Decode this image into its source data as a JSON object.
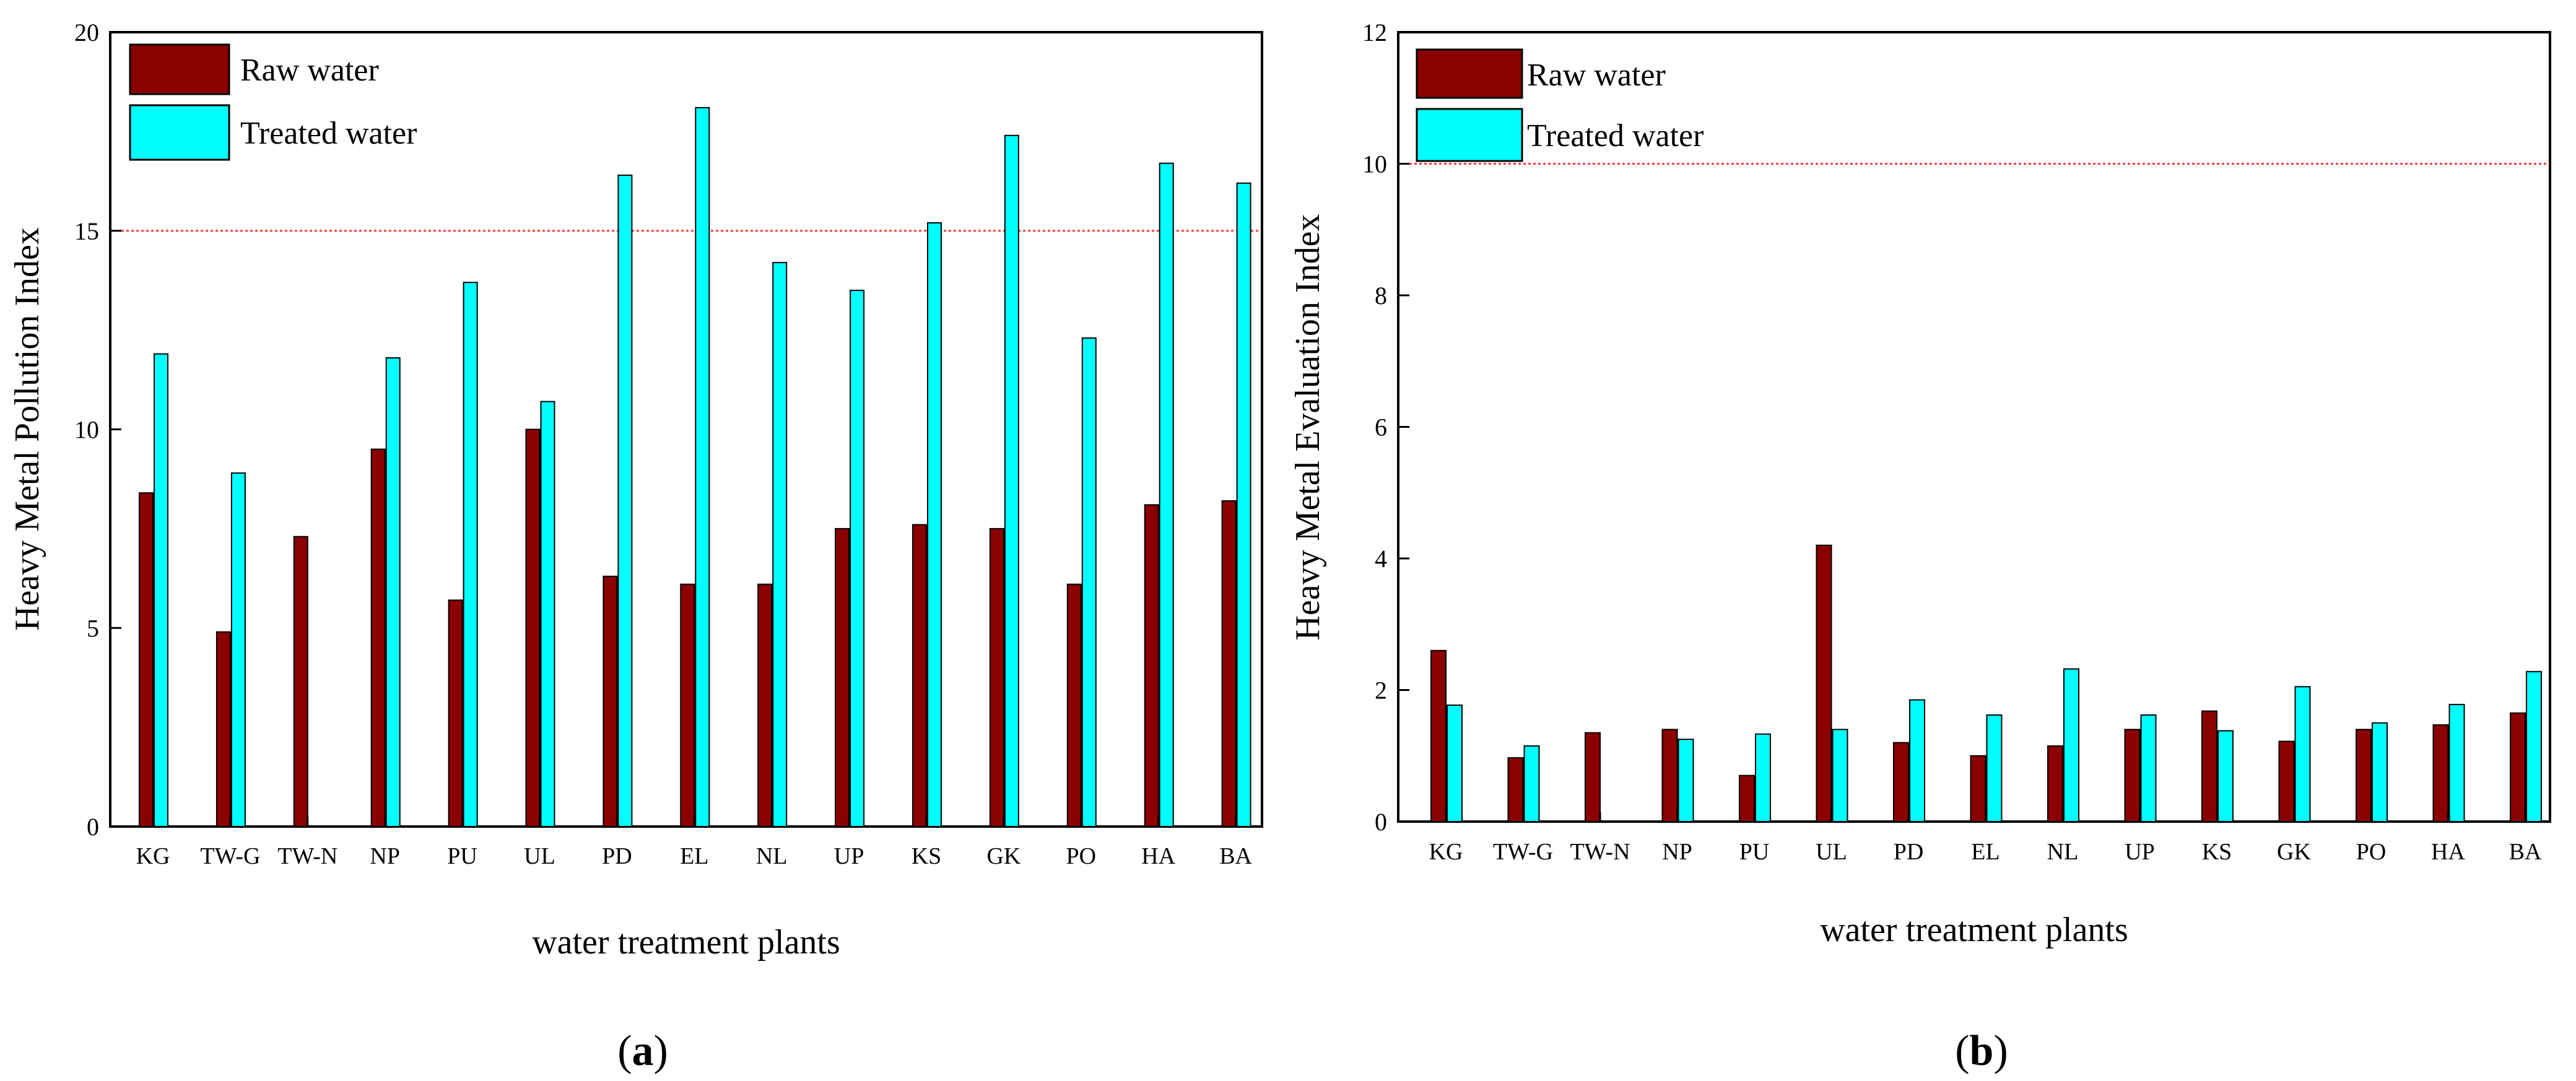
{
  "chart_data": [
    {
      "type": "bar",
      "panel_label": "a",
      "title": "",
      "xlabel": "water treatment plants",
      "ylabel": "Heavy Metal Pollution Index",
      "ylim": [
        0,
        20
      ],
      "yticks": [
        "0",
        "5",
        "10",
        "15",
        "20"
      ],
      "threshold": 15,
      "categories": [
        "KG",
        "TW-G",
        "TW-N",
        "NP",
        "PU",
        "UL",
        "PD",
        "EL",
        "NL",
        "UP",
        "KS",
        "GK",
        "PO",
        "HA",
        "BA"
      ],
      "series": [
        {
          "name": "Raw water",
          "color": "#8b0000",
          "values": [
            8.4,
            4.9,
            7.3,
            9.5,
            5.7,
            10.0,
            6.3,
            6.1,
            6.1,
            7.5,
            7.6,
            7.5,
            6.1,
            8.1,
            8.2
          ]
        },
        {
          "name": "Treated water",
          "color": "#00ffff",
          "values": [
            11.9,
            8.9,
            null,
            11.8,
            13.7,
            10.7,
            16.4,
            18.1,
            14.2,
            13.5,
            15.2,
            17.4,
            12.3,
            16.7,
            16.2
          ]
        }
      ],
      "legend": "top-left"
    },
    {
      "type": "bar",
      "panel_label": "b",
      "title": "",
      "xlabel": "water treatment plants",
      "ylabel": "Heavy Metal Evaluation Index",
      "ylim": [
        0,
        12
      ],
      "yticks": [
        "0",
        "2",
        "4",
        "6",
        "8",
        "10",
        "12"
      ],
      "threshold": 10,
      "categories": [
        "KG",
        "TW-G",
        "TW-N",
        "NP",
        "PU",
        "UL",
        "PD",
        "EL",
        "NL",
        "UP",
        "KS",
        "GK",
        "PO",
        "HA",
        "BA"
      ],
      "series": [
        {
          "name": "Raw water",
          "color": "#8b0000",
          "values": [
            2.6,
            0.97,
            1.35,
            1.4,
            0.7,
            4.2,
            1.2,
            1.0,
            1.15,
            1.4,
            1.68,
            1.22,
            1.4,
            1.47,
            1.65
          ]
        },
        {
          "name": "Treated water",
          "color": "#00ffff",
          "values": [
            1.77,
            1.15,
            null,
            1.25,
            1.33,
            1.4,
            1.85,
            1.62,
            2.32,
            1.62,
            1.38,
            2.05,
            1.5,
            1.78,
            2.28
          ]
        }
      ],
      "legend": "top-left"
    }
  ]
}
